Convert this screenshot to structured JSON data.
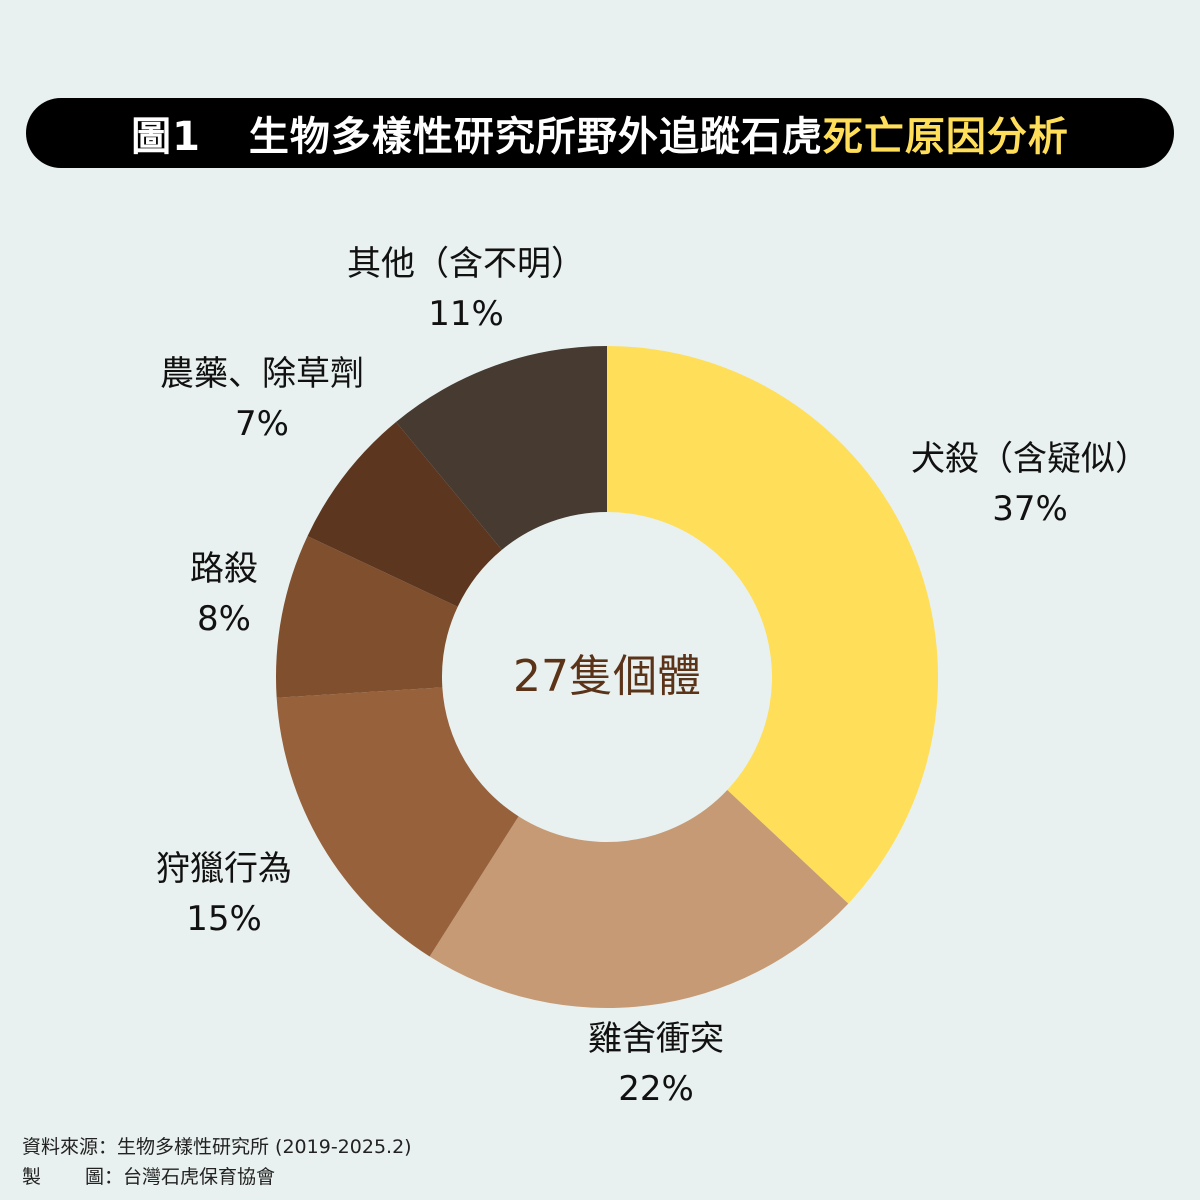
{
  "title": {
    "prefix": "圖1",
    "main": "生物多樣性研究所野外追蹤石虎",
    "highlight": "死亡原因分析"
  },
  "chart_data": {
    "type": "donut",
    "center_label": "27隻個體",
    "slices": [
      {
        "label": "犬殺（含疑似）",
        "percent_label": "37%",
        "value": 37,
        "color": "#ffde59"
      },
      {
        "label": "雞舍衝突",
        "percent_label": "22%",
        "value": 22,
        "color": "#c69a75"
      },
      {
        "label": "狩獵行為",
        "percent_label": "15%",
        "value": 15,
        "color": "#97613c"
      },
      {
        "label": "路殺",
        "percent_label": "8%",
        "value": 8,
        "color": "#804f2e"
      },
      {
        "label": "農藥、除草劑",
        "percent_label": "7%",
        "value": 7,
        "color": "#5c361e"
      },
      {
        "label": "其他（含不明）",
        "percent_label": "11%",
        "value": 11,
        "color": "#463a31"
      }
    ]
  },
  "footer": {
    "source_label": "資料來源：",
    "source_value": "生物多樣性研究所 (2019-2025.2)",
    "maker_label_1": "製",
    "maker_label_2": "圖：",
    "maker_value": "台灣石虎保育協會"
  }
}
